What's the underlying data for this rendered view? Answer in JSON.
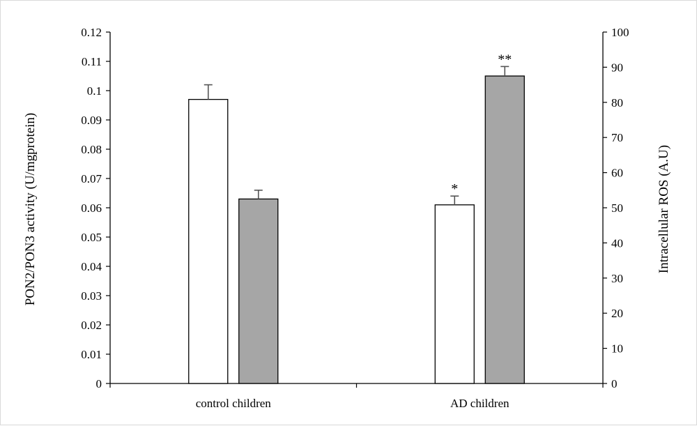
{
  "chart_data": {
    "type": "bar",
    "categories": [
      "control children",
      "AD children"
    ],
    "series": [
      {
        "axis": "left",
        "color": "#ffffff",
        "values": [
          0.097,
          0.061
        ],
        "errors": [
          0.005,
          0.003
        ],
        "annotations": [
          "",
          "*"
        ]
      },
      {
        "axis": "right",
        "color": "#a6a6a6",
        "values": [
          52.5,
          87.5
        ],
        "errors": [
          2.5,
          2.7
        ],
        "annotations": [
          "",
          "**"
        ]
      }
    ],
    "y_left": {
      "label": "PON2/PON3 activity  (U/mgprotein)",
      "lim": [
        0,
        0.12
      ],
      "ticks": [
        "0",
        "0.01",
        "0.02",
        "0.03",
        "0.04",
        "0.05",
        "0.06",
        "0.07",
        "0.08",
        "0.09",
        "0.1",
        "0.11",
        "0.12"
      ]
    },
    "y_right": {
      "label": "Intracellular ROS (A.U)",
      "lim": [
        0,
        100
      ],
      "ticks": [
        "0",
        "10",
        "20",
        "30",
        "40",
        "50",
        "60",
        "70",
        "80",
        "90",
        "100"
      ]
    },
    "grid": false,
    "legend": "none"
  }
}
